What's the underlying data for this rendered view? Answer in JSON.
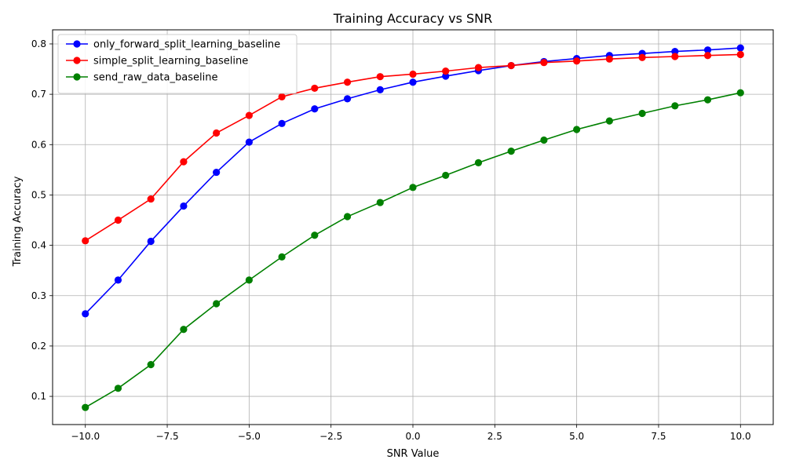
{
  "chart_data": {
    "type": "line",
    "title": "Training Accuracy vs SNR",
    "xlabel": "SNR Value",
    "ylabel": "Training Accuracy",
    "xlim": [
      -11.0,
      11.0
    ],
    "ylim": [
      0.044,
      0.828
    ],
    "xticks": [
      -10.0,
      -7.5,
      -5.0,
      -2.5,
      0.0,
      2.5,
      5.0,
      7.5,
      10.0
    ],
    "xtick_labels": [
      "−10.0",
      "−7.5",
      "−5.0",
      "−2.5",
      "0.0",
      "2.5",
      "5.0",
      "7.5",
      "10.0"
    ],
    "yticks": [
      0.1,
      0.2,
      0.3,
      0.4,
      0.5,
      0.6,
      0.7,
      0.8
    ],
    "ytick_labels": [
      "0.1",
      "0.2",
      "0.3",
      "0.4",
      "0.5",
      "0.6",
      "0.7",
      "0.8"
    ],
    "grid": true,
    "legend_position": "top-left",
    "x": [
      -10,
      -9,
      -8,
      -7,
      -6,
      -5,
      -4,
      -3,
      -2,
      -1,
      0,
      1,
      2,
      3,
      4,
      5,
      6,
      7,
      8,
      9,
      10
    ],
    "series": [
      {
        "name": "only_forward_split_learning_baseline",
        "color": "#0000ff",
        "values": [
          0.264,
          0.331,
          0.408,
          0.478,
          0.545,
          0.605,
          0.642,
          0.671,
          0.691,
          0.709,
          0.724,
          0.736,
          0.747,
          0.757,
          0.765,
          0.771,
          0.777,
          0.781,
          0.785,
          0.788,
          0.792
        ]
      },
      {
        "name": "simple_split_learning_baseline",
        "color": "#ff0000",
        "values": [
          0.409,
          0.45,
          0.492,
          0.566,
          0.623,
          0.658,
          0.695,
          0.712,
          0.724,
          0.735,
          0.74,
          0.746,
          0.753,
          0.757,
          0.763,
          0.766,
          0.77,
          0.773,
          0.775,
          0.777,
          0.779
        ]
      },
      {
        "name": "send_raw_data_baseline",
        "color": "#008000",
        "values": [
          0.078,
          0.116,
          0.163,
          0.233,
          0.284,
          0.331,
          0.377,
          0.42,
          0.457,
          0.485,
          0.515,
          0.539,
          0.564,
          0.587,
          0.609,
          0.63,
          0.647,
          0.662,
          0.677,
          0.689,
          0.703
        ]
      }
    ]
  }
}
